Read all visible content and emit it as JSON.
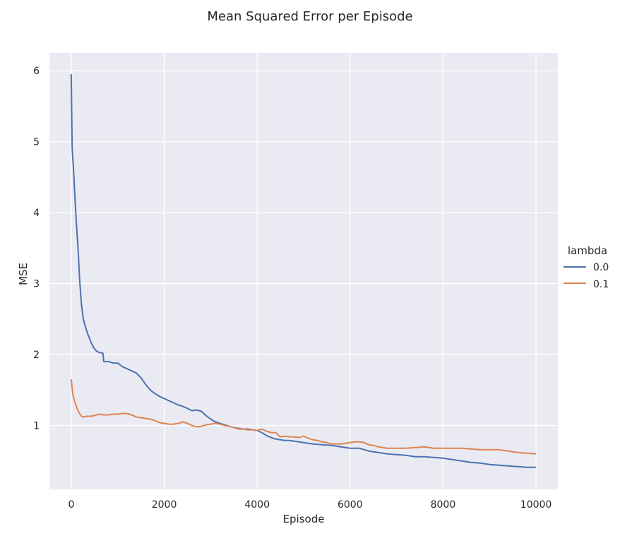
{
  "chart_data": {
    "type": "line",
    "title": "Mean Squared Error per Episode",
    "xlabel": "Episode",
    "ylabel": "MSE",
    "xlim": [
      -470,
      10470
    ],
    "ylim": [
      0.1,
      6.25
    ],
    "xticks": [
      0,
      2000,
      4000,
      6000,
      8000,
      10000
    ],
    "yticks": [
      1,
      2,
      3,
      4,
      5,
      6
    ],
    "grid": true,
    "legend": {
      "title": "lambda",
      "placement": "right"
    },
    "series": [
      {
        "name": "0.0",
        "color": "#4c72b0",
        "x": [
          0,
          20,
          50,
          80,
          110,
          150,
          180,
          220,
          260,
          300,
          360,
          420,
          480,
          540,
          600,
          680,
          700,
          800,
          900,
          1000,
          1100,
          1200,
          1300,
          1400,
          1500,
          1600,
          1700,
          1800,
          1900,
          2000,
          2100,
          2200,
          2300,
          2400,
          2500,
          2600,
          2700,
          2800,
          2900,
          3000,
          3100,
          3200,
          3300,
          3400,
          3500,
          3600,
          3700,
          3800,
          3900,
          4000,
          4100,
          4200,
          4300,
          4400,
          4500,
          4600,
          4700,
          4800,
          4900,
          5000,
          5200,
          5400,
          5600,
          5800,
          6000,
          6200,
          6400,
          6600,
          6800,
          7000,
          7200,
          7400,
          7600,
          7800,
          8000,
          8200,
          8400,
          8600,
          8800,
          9000,
          9200,
          9400,
          9600,
          9800,
          10000
        ],
        "y": [
          5.95,
          4.9,
          4.6,
          4.2,
          3.85,
          3.45,
          3.05,
          2.7,
          2.5,
          2.4,
          2.28,
          2.18,
          2.1,
          2.05,
          2.03,
          2.02,
          1.9,
          1.9,
          1.88,
          1.88,
          1.83,
          1.8,
          1.77,
          1.74,
          1.67,
          1.58,
          1.5,
          1.45,
          1.41,
          1.38,
          1.35,
          1.32,
          1.29,
          1.27,
          1.24,
          1.21,
          1.22,
          1.2,
          1.14,
          1.09,
          1.05,
          1.03,
          1.01,
          0.99,
          0.97,
          0.96,
          0.95,
          0.95,
          0.94,
          0.93,
          0.9,
          0.86,
          0.83,
          0.81,
          0.8,
          0.79,
          0.79,
          0.78,
          0.77,
          0.76,
          0.74,
          0.73,
          0.72,
          0.7,
          0.68,
          0.68,
          0.64,
          0.62,
          0.6,
          0.59,
          0.58,
          0.56,
          0.56,
          0.55,
          0.54,
          0.52,
          0.5,
          0.48,
          0.47,
          0.45,
          0.44,
          0.43,
          0.42,
          0.41,
          0.41
        ]
      },
      {
        "name": "0.1",
        "color": "#dd8452",
        "x": [
          0,
          30,
          70,
          120,
          170,
          220,
          270,
          320,
          400,
          500,
          600,
          700,
          800,
          900,
          1000,
          1100,
          1200,
          1300,
          1400,
          1500,
          1600,
          1700,
          1800,
          1900,
          2000,
          2100,
          2200,
          2300,
          2400,
          2500,
          2600,
          2700,
          2800,
          2900,
          3000,
          3100,
          3200,
          3300,
          3400,
          3500,
          3600,
          3700,
          3800,
          3900,
          4000,
          4100,
          4200,
          4300,
          4400,
          4500,
          4600,
          4700,
          4800,
          4900,
          5000,
          5100,
          5200,
          5300,
          5400,
          5500,
          5600,
          5700,
          5800,
          5900,
          6000,
          6100,
          6200,
          6300,
          6400,
          6500,
          6600,
          6700,
          6800,
          7000,
          7200,
          7400,
          7600,
          7800,
          8000,
          8200,
          8400,
          8600,
          8800,
          9000,
          9200,
          9300,
          9400,
          9600,
          9800,
          10000
        ],
        "y": [
          1.65,
          1.45,
          1.35,
          1.25,
          1.18,
          1.13,
          1.12,
          1.13,
          1.13,
          1.14,
          1.16,
          1.15,
          1.15,
          1.16,
          1.16,
          1.17,
          1.17,
          1.15,
          1.12,
          1.11,
          1.1,
          1.09,
          1.07,
          1.04,
          1.03,
          1.02,
          1.02,
          1.03,
          1.05,
          1.03,
          1.0,
          0.98,
          0.99,
          1.01,
          1.02,
          1.03,
          1.02,
          1.0,
          0.99,
          0.97,
          0.95,
          0.95,
          0.94,
          0.94,
          0.93,
          0.95,
          0.92,
          0.9,
          0.9,
          0.84,
          0.85,
          0.84,
          0.84,
          0.83,
          0.85,
          0.82,
          0.8,
          0.79,
          0.77,
          0.76,
          0.74,
          0.74,
          0.74,
          0.75,
          0.76,
          0.77,
          0.77,
          0.76,
          0.73,
          0.72,
          0.7,
          0.69,
          0.68,
          0.68,
          0.68,
          0.69,
          0.7,
          0.68,
          0.68,
          0.68,
          0.68,
          0.67,
          0.66,
          0.66,
          0.66,
          0.65,
          0.64,
          0.62,
          0.61,
          0.6
        ]
      }
    ]
  }
}
